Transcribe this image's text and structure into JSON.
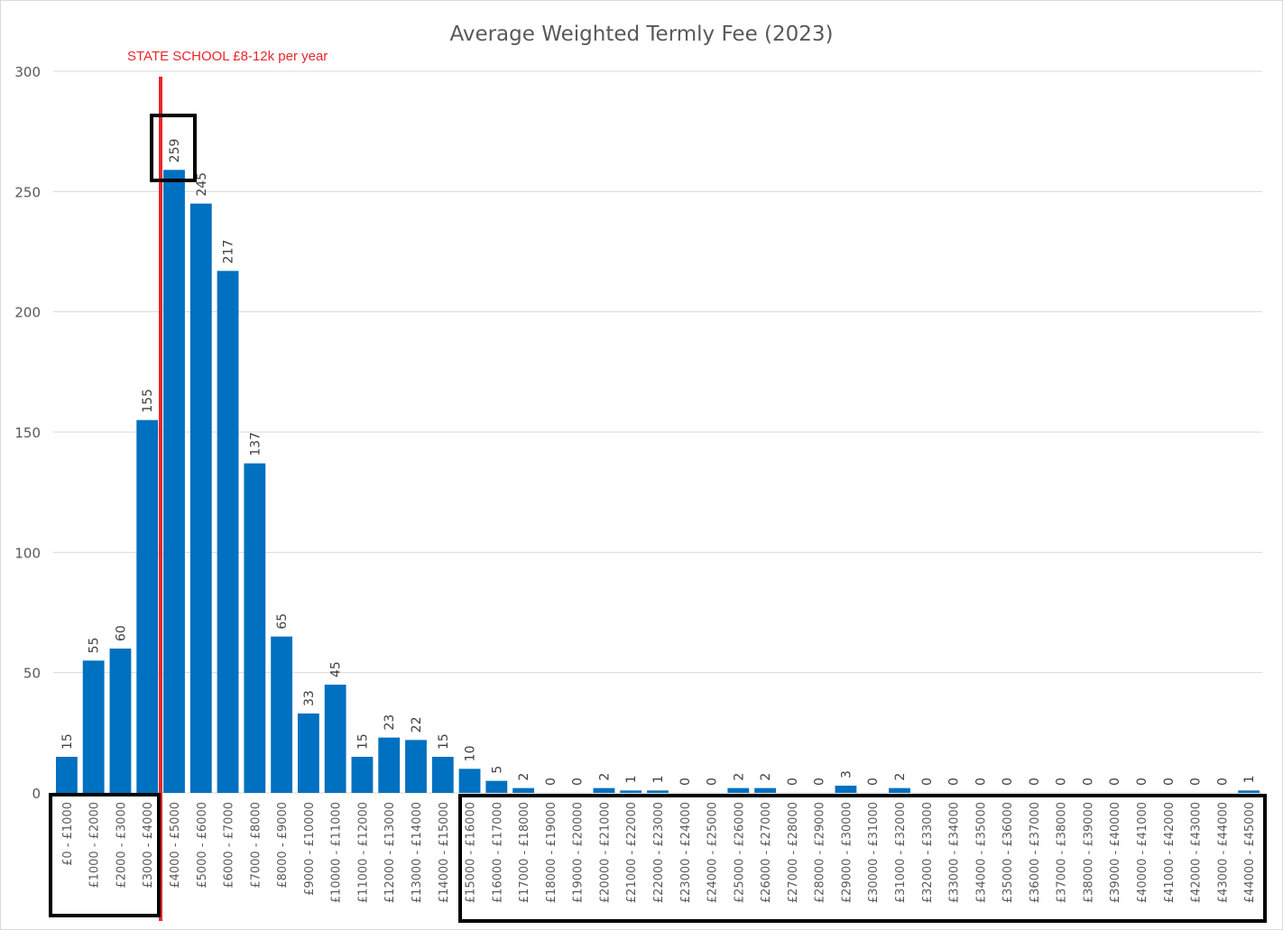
{
  "chart_data": {
    "type": "bar",
    "title": "Average Weighted Termly Fee (2023)",
    "xlabel": "",
    "ylabel": "",
    "ylim": [
      0,
      300
    ],
    "yticks": [
      0,
      50,
      100,
      150,
      200,
      250,
      300
    ],
    "grid": true,
    "legend": "none",
    "bar_color": "#0070c0",
    "categories": [
      "£0 - £1000",
      "£1000 - £2000",
      "£2000 - £3000",
      "£3000 - £4000",
      "£4000 - £5000",
      "£5000 - £6000",
      "£6000 - £7000",
      "£7000 - £8000",
      "£8000 - £9000",
      "£9000 - £10000",
      "£10000 - £11000",
      "£11000 - £12000",
      "£12000 - £13000",
      "£13000 - £14000",
      "£14000 - £15000",
      "£15000 - £16000",
      "£16000 - £17000",
      "£17000 - £18000",
      "£18000 - £19000",
      "£19000 - £20000",
      "£20000 - £21000",
      "£21000 - £22000",
      "£22000 - £23000",
      "£23000 - £24000",
      "£24000 - £25000",
      "£25000 - £26000",
      "£26000 - £27000",
      "£27000 - £28000",
      "£28000 - £29000",
      "£29000 - £30000",
      "£30000 - £31000",
      "£31000 - £32000",
      "£32000 - £33000",
      "£33000 - £34000",
      "£34000 - £35000",
      "£35000 - £36000",
      "£36000 - £37000",
      "£37000 - £38000",
      "£38000 - £39000",
      "£39000 - £40000",
      "£40000 - £41000",
      "£41000 - £42000",
      "£42000 - £43000",
      "£43000 - £44000",
      "£44000 - £45000"
    ],
    "values": [
      15,
      55,
      60,
      155,
      259,
      245,
      217,
      137,
      65,
      33,
      45,
      15,
      23,
      22,
      15,
      10,
      5,
      2,
      0,
      0,
      2,
      1,
      1,
      0,
      0,
      2,
      2,
      0,
      0,
      3,
      0,
      2,
      0,
      0,
      0,
      0,
      0,
      0,
      0,
      0,
      0,
      0,
      0,
      0,
      1
    ],
    "annotations": {
      "state_school_text": "STATE SCHOOL £8-12k per year",
      "line_color": "#e8262b",
      "highlight_box_color": "#000000"
    }
  }
}
